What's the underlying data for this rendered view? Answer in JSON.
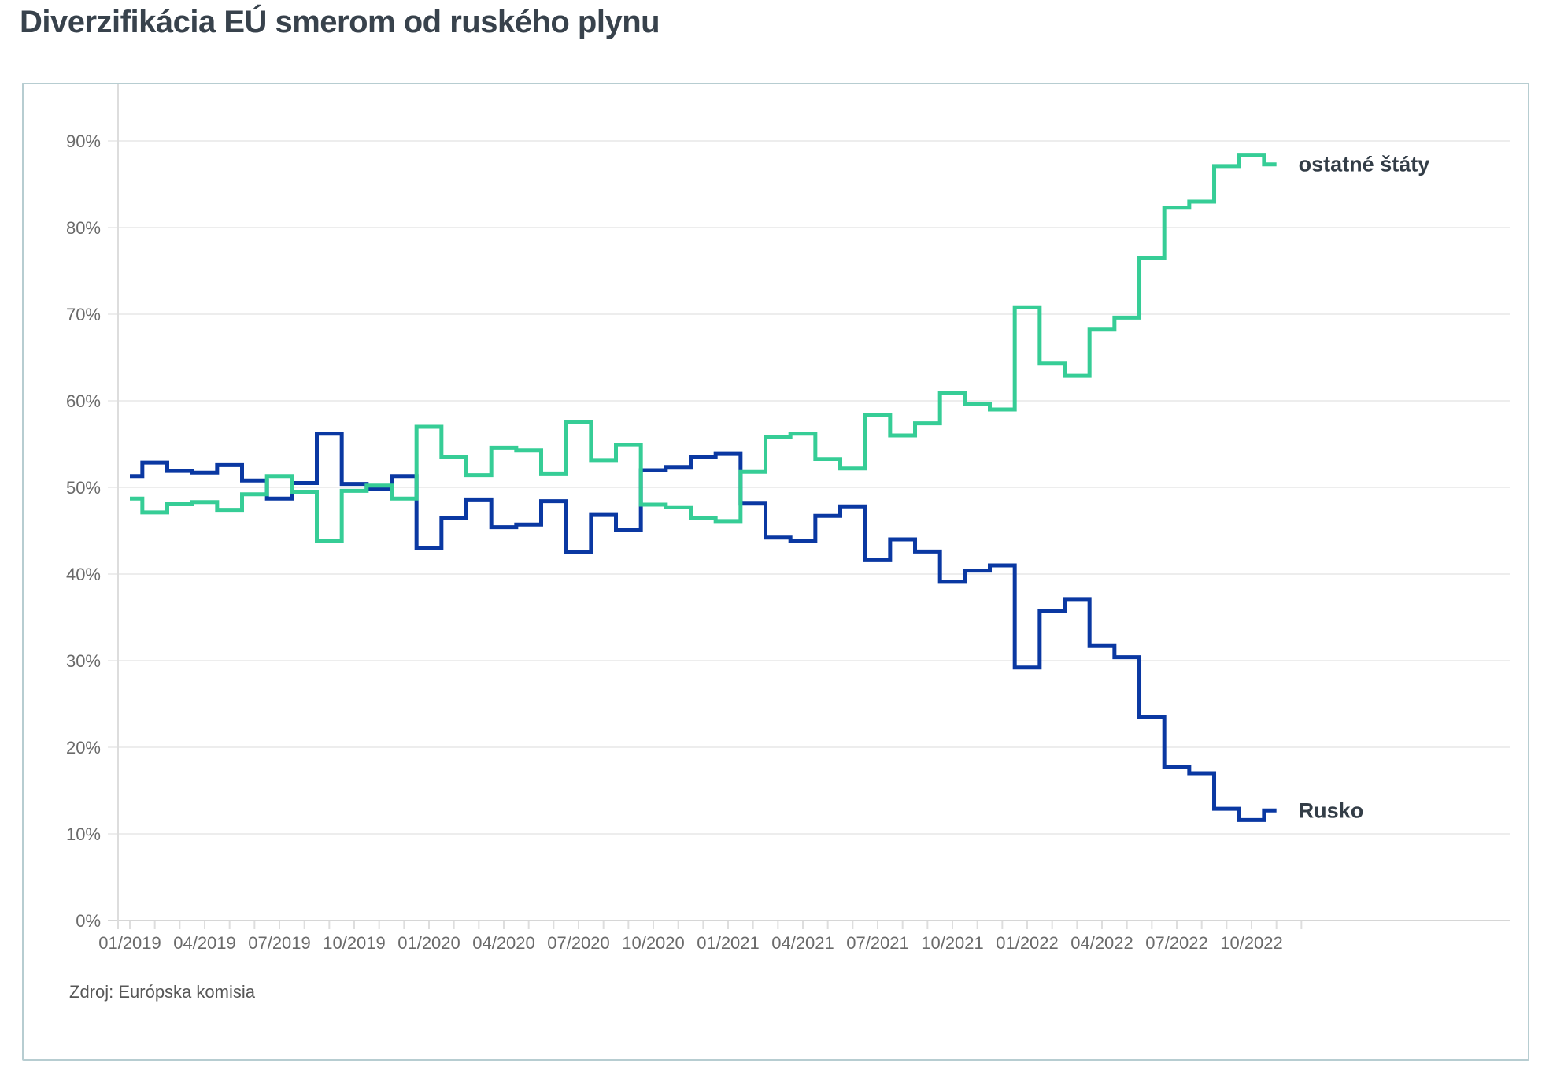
{
  "title": "Diverzifikácia EÚ smerom od ruského plynu",
  "source": "Zdroj: Európska komisia",
  "chart_data": {
    "type": "line",
    "step": "center",
    "title": "Diverzifikácia EÚ smerom od ruského plynu",
    "xlabel": "",
    "ylabel": "",
    "ylim": [
      0,
      90
    ],
    "grid": "horizontal",
    "legend_position": "series-end-labels",
    "unit": "%",
    "x": [
      "01/2019",
      "02/2019",
      "03/2019",
      "04/2019",
      "05/2019",
      "06/2019",
      "07/2019",
      "08/2019",
      "09/2019",
      "10/2019",
      "11/2019",
      "12/2019",
      "01/2020",
      "02/2020",
      "03/2020",
      "04/2020",
      "05/2020",
      "06/2020",
      "07/2020",
      "08/2020",
      "09/2020",
      "10/2020",
      "11/2020",
      "12/2020",
      "01/2021",
      "02/2021",
      "03/2021",
      "04/2021",
      "05/2021",
      "06/2021",
      "07/2021",
      "08/2021",
      "09/2021",
      "10/2021",
      "11/2021",
      "12/2021",
      "01/2022",
      "02/2022",
      "03/2022",
      "04/2022",
      "05/2022",
      "06/2022",
      "07/2022",
      "08/2022",
      "09/2022",
      "10/2022",
      "11/2022"
    ],
    "x_tick_labels": [
      "01/2019",
      "04/2019",
      "07/2019",
      "10/2019",
      "01/2020",
      "04/2020",
      "07/2020",
      "10/2020",
      "01/2021",
      "04/2021",
      "07/2021",
      "10/2021",
      "01/2022",
      "04/2022",
      "07/2022",
      "10/2022"
    ],
    "y_tick_labels": [
      "0%",
      "10%",
      "20%",
      "30%",
      "40%",
      "50%",
      "60%",
      "70%",
      "80%",
      "90%"
    ],
    "series": [
      {
        "name": "Rusko",
        "color": "#0a38a2",
        "values": [
          51.3,
          52.9,
          51.9,
          51.7,
          52.6,
          50.8,
          48.7,
          50.5,
          56.2,
          50.4,
          49.8,
          51.3,
          43.0,
          46.5,
          48.6,
          45.4,
          45.7,
          48.4,
          42.5,
          46.9,
          45.1,
          52.0,
          52.3,
          53.5,
          53.9,
          48.2,
          44.2,
          43.8,
          46.7,
          47.8,
          41.6,
          44.0,
          42.6,
          39.1,
          40.4,
          41.0,
          29.2,
          35.7,
          37.1,
          31.7,
          30.4,
          23.5,
          17.7,
          17.0,
          12.9,
          11.6,
          12.7
        ]
      },
      {
        "name": "ostatné štáty",
        "color": "#36cd96",
        "values": [
          48.7,
          47.1,
          48.1,
          48.3,
          47.4,
          49.2,
          51.3,
          49.5,
          43.8,
          49.6,
          50.2,
          48.7,
          57.0,
          53.5,
          51.4,
          54.6,
          54.3,
          51.6,
          57.5,
          53.1,
          54.9,
          48.0,
          47.7,
          46.5,
          46.1,
          51.8,
          55.8,
          56.2,
          53.3,
          52.2,
          58.4,
          56.0,
          57.4,
          60.9,
          59.6,
          59.0,
          70.8,
          64.3,
          62.9,
          68.3,
          69.6,
          76.5,
          82.3,
          83.0,
          87.1,
          88.4,
          87.3
        ]
      }
    ]
  }
}
